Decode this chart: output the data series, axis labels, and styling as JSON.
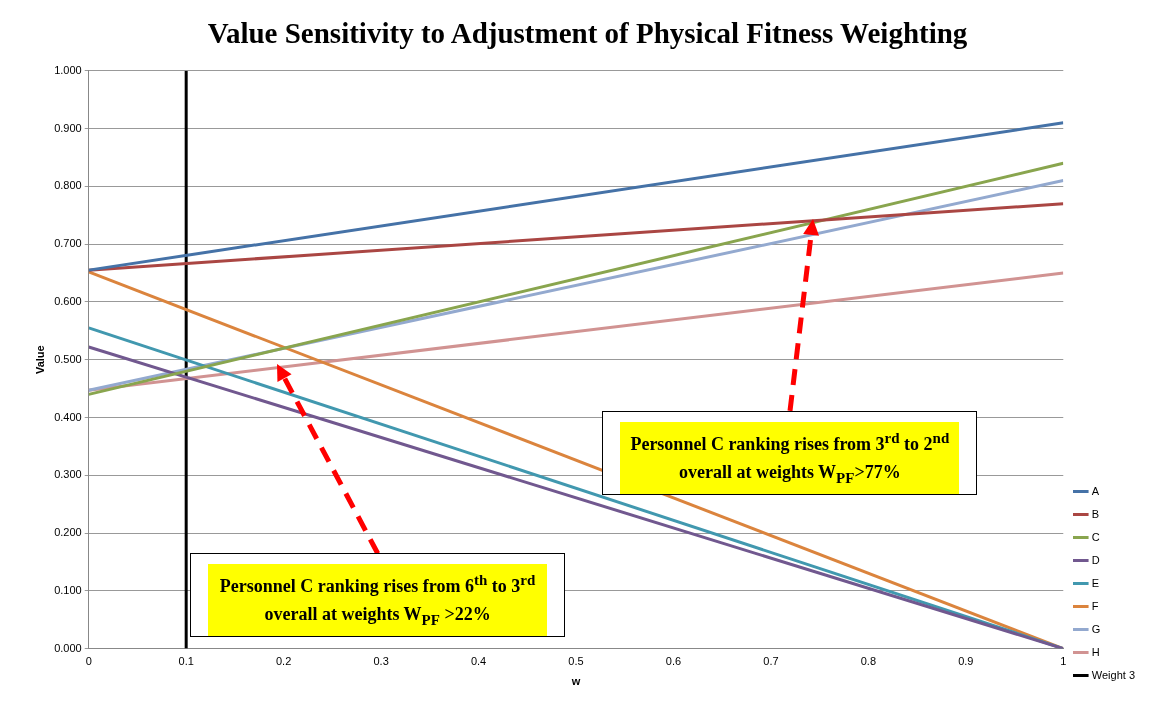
{
  "chart_data": {
    "type": "line",
    "title": "Value Sensitivity to Adjustment of Physical Fitness Weighting",
    "xlabel": "w",
    "ylabel": "Value",
    "xlim": [
      0,
      1
    ],
    "xticks": [
      0,
      0.1,
      0.2,
      0.3,
      0.4,
      0.5,
      0.6,
      0.7,
      0.8,
      0.9,
      1
    ],
    "ylim": [
      0,
      1
    ],
    "yticks": [
      {
        "value": 0,
        "label": "0.000"
      },
      {
        "value": 0.1,
        "label": "0.100"
      },
      {
        "value": 0.2,
        "label": "0.200"
      },
      {
        "value": 0.3,
        "label": "0.300"
      },
      {
        "value": 0.4,
        "label": "0.400"
      },
      {
        "value": 0.5,
        "label": "0.500"
      },
      {
        "value": 0.6,
        "label": "0.600"
      },
      {
        "value": 0.7,
        "label": "0.700"
      },
      {
        "value": 0.8,
        "label": "0.800"
      },
      {
        "value": 0.9,
        "label": "0.900"
      },
      {
        "value": 1,
        "label": "1.000"
      }
    ],
    "grid": "y",
    "legend": "right",
    "marker": "none",
    "line_style": "solid",
    "series": [
      {
        "name": "A",
        "color": "#4572a7",
        "x": [
          0,
          1
        ],
        "values": [
          0.655,
          0.91
        ]
      },
      {
        "name": "B",
        "color": "#aa4643",
        "x": [
          0,
          1
        ],
        "values": [
          0.655,
          0.77
        ]
      },
      {
        "name": "C",
        "color": "#89a54e",
        "x": [
          0,
          1
        ],
        "values": [
          0.44,
          0.84
        ]
      },
      {
        "name": "D",
        "color": "#71588f",
        "x": [
          0,
          1
        ],
        "values": [
          0.522,
          0
        ]
      },
      {
        "name": "E",
        "color": "#4198af",
        "x": [
          0,
          1
        ],
        "values": [
          0.555,
          0
        ]
      },
      {
        "name": "F",
        "color": "#db843d",
        "x": [
          0,
          1
        ],
        "values": [
          0.652,
          0
        ]
      },
      {
        "name": "G",
        "color": "#93a9cf",
        "x": [
          0,
          1
        ],
        "values": [
          0.447,
          0.81
        ]
      },
      {
        "name": "H",
        "color": "#d19392",
        "x": [
          0,
          1
        ],
        "values": [
          0.447,
          0.65
        ]
      },
      {
        "name": "Weight 3",
        "color": "#000000",
        "x": [
          0.1,
          0.1
        ],
        "values": [
          0,
          1
        ]
      }
    ],
    "annotations": [
      "Personnel C ranking rises from 3$^{rd}$ to 2$^{nd}$ overall at weights W$_{PF}$>77%",
      "Personnel C ranking rises from 6$^{th}$ to 3$^{rd}$ overall at weights W$_{PF}$ >22%"
    ]
  }
}
